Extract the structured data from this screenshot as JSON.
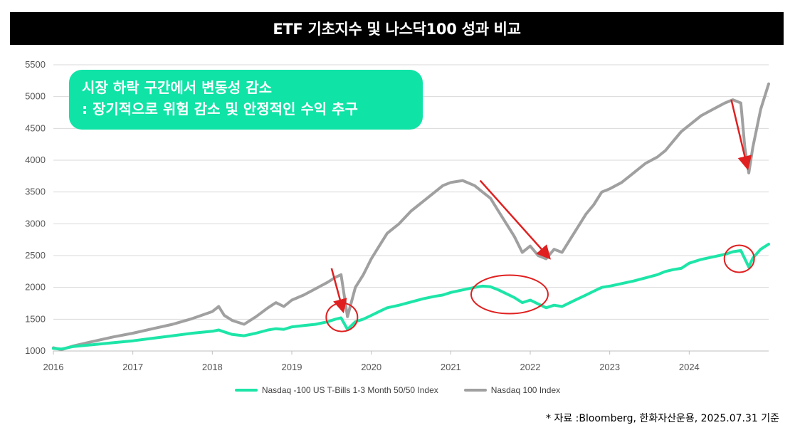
{
  "header": {
    "title": "ETF 기초지수 및 나스닥100 성과 비교"
  },
  "callout": {
    "line1": "시장 하락 구간에서 변동성 감소",
    "line2": ": 장기적으로 위험 감소 및 안정적인 수익 추구",
    "bg_color": "#0FE3A6"
  },
  "source_note": "* 자료 :Bloomberg, 한화자산운용, 2025.07.31 기준",
  "colors": {
    "grey_series": "#A0A0A0",
    "green_series": "#1DE5A8",
    "arrow": "#E02020",
    "circle": "#E02020"
  },
  "chart_data": {
    "type": "line",
    "title": "ETF 기초지수 및 나스닥100 성과 비교",
    "xlabel": "",
    "ylabel": "",
    "xlim": [
      2016.0,
      2025.0
    ],
    "ylim": [
      1000,
      5500
    ],
    "yticks": [
      1000,
      1500,
      2000,
      2500,
      3000,
      3500,
      4000,
      4500,
      5000,
      5500
    ],
    "xticks": [
      2016,
      2017,
      2018,
      2019,
      2020,
      2021,
      2022,
      2023,
      2024
    ],
    "grid": "horizontal",
    "legend_position": "bottom",
    "series": [
      {
        "name": "Nasdaq -100 US T-Bills 1-3 Month 50/50 Index",
        "color": "#1DE5A8",
        "x": [
          2016.0,
          2016.1,
          2016.25,
          2016.5,
          2016.75,
          2017.0,
          2017.25,
          2017.5,
          2017.75,
          2018.0,
          2018.08,
          2018.15,
          2018.25,
          2018.4,
          2018.55,
          2018.7,
          2018.8,
          2018.9,
          2019.0,
          2019.15,
          2019.3,
          2019.45,
          2019.55,
          2019.62,
          2019.7,
          2019.8,
          2019.9,
          2020.0,
          2020.1,
          2020.2,
          2020.35,
          2020.5,
          2020.65,
          2020.8,
          2020.9,
          2021.0,
          2021.15,
          2021.3,
          2021.4,
          2021.5,
          2021.6,
          2021.7,
          2021.8,
          2021.9,
          2022.0,
          2022.1,
          2022.2,
          2022.3,
          2022.4,
          2022.5,
          2022.6,
          2022.7,
          2022.8,
          2022.9,
          2023.0,
          2023.15,
          2023.3,
          2023.45,
          2023.6,
          2023.7,
          2023.8,
          2023.9,
          2024.0,
          2024.15,
          2024.3,
          2024.45,
          2024.55,
          2024.65,
          2024.7,
          2024.75,
          2024.8,
          2024.9,
          2025.0
        ],
        "values": [
          1040,
          1030,
          1070,
          1100,
          1130,
          1160,
          1200,
          1240,
          1280,
          1310,
          1330,
          1300,
          1260,
          1240,
          1280,
          1330,
          1350,
          1340,
          1380,
          1400,
          1420,
          1460,
          1500,
          1520,
          1340,
          1460,
          1500,
          1560,
          1620,
          1680,
          1720,
          1770,
          1820,
          1860,
          1880,
          1920,
          1960,
          2000,
          2020,
          2010,
          1960,
          1900,
          1840,
          1760,
          1800,
          1740,
          1680,
          1720,
          1700,
          1760,
          1820,
          1880,
          1940,
          2000,
          2020,
          2060,
          2100,
          2150,
          2200,
          2250,
          2280,
          2300,
          2380,
          2440,
          2480,
          2520,
          2560,
          2580,
          2450,
          2320,
          2460,
          2600,
          2680
        ]
      },
      {
        "name": "Nasdaq 100 Index",
        "color": "#A0A0A0",
        "x": [
          2016.0,
          2016.1,
          2016.25,
          2016.5,
          2016.75,
          2017.0,
          2017.25,
          2017.5,
          2017.75,
          2018.0,
          2018.08,
          2018.15,
          2018.25,
          2018.4,
          2018.55,
          2018.7,
          2018.8,
          2018.9,
          2019.0,
          2019.15,
          2019.3,
          2019.45,
          2019.55,
          2019.62,
          2019.7,
          2019.8,
          2019.9,
          2020.0,
          2020.1,
          2020.2,
          2020.35,
          2020.5,
          2020.65,
          2020.8,
          2020.9,
          2021.0,
          2021.15,
          2021.3,
          2021.4,
          2021.5,
          2021.6,
          2021.7,
          2021.8,
          2021.9,
          2022.0,
          2022.1,
          2022.2,
          2022.3,
          2022.4,
          2022.5,
          2022.6,
          2022.7,
          2022.8,
          2022.9,
          2023.0,
          2023.15,
          2023.3,
          2023.45,
          2023.6,
          2023.7,
          2023.8,
          2023.9,
          2024.0,
          2024.15,
          2024.3,
          2024.45,
          2024.55,
          2024.65,
          2024.7,
          2024.75,
          2024.8,
          2024.9,
          2025.0
        ],
        "values": [
          1050,
          1020,
          1080,
          1150,
          1220,
          1280,
          1350,
          1420,
          1510,
          1620,
          1700,
          1560,
          1480,
          1420,
          1540,
          1680,
          1760,
          1700,
          1800,
          1880,
          1980,
          2080,
          2160,
          2200,
          1540,
          2000,
          2200,
          2450,
          2650,
          2850,
          3000,
          3200,
          3350,
          3500,
          3600,
          3650,
          3680,
          3600,
          3500,
          3400,
          3200,
          3000,
          2800,
          2550,
          2650,
          2500,
          2450,
          2600,
          2550,
          2750,
          2950,
          3150,
          3300,
          3500,
          3550,
          3650,
          3800,
          3950,
          4050,
          4150,
          4300,
          4450,
          4550,
          4700,
          4800,
          4900,
          4950,
          4900,
          4200,
          3800,
          4200,
          4800,
          5200
        ]
      }
    ]
  }
}
